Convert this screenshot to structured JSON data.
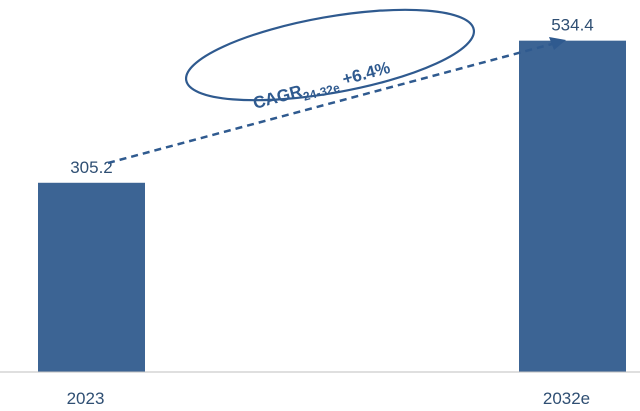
{
  "chart_data": {
    "type": "bar",
    "categories": [
      "2023",
      "2032e"
    ],
    "values": [
      305.2,
      534.4
    ],
    "data_labels": [
      "305.2",
      "534.4"
    ],
    "title": "",
    "xlabel": "",
    "ylabel": "",
    "ylim": [
      0,
      600
    ],
    "grid": false,
    "bar_color": "#3c6494",
    "annotation": {
      "prefix": "CAGR",
      "subscript": "24-32e",
      "value": "+6.4%",
      "color": "#2f5a8f"
    }
  }
}
